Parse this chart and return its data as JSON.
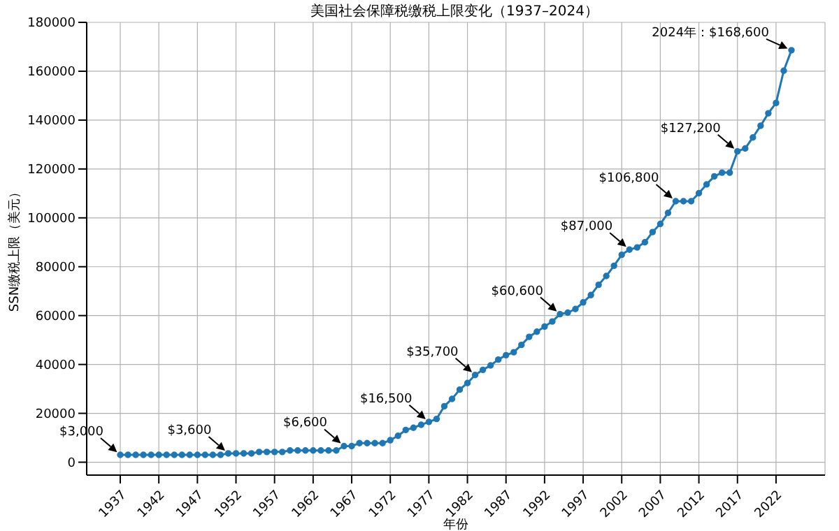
{
  "chart_data": {
    "type": "line",
    "title": "美国社会保障税缴税上限变化（1937–2024）",
    "xlabel": "年份",
    "ylabel": "SSN缴税上限（美元）",
    "x": [
      1937,
      1938,
      1939,
      1940,
      1941,
      1942,
      1943,
      1944,
      1945,
      1946,
      1947,
      1948,
      1949,
      1950,
      1951,
      1952,
      1953,
      1954,
      1955,
      1956,
      1957,
      1958,
      1959,
      1960,
      1961,
      1962,
      1963,
      1964,
      1965,
      1966,
      1967,
      1968,
      1969,
      1970,
      1971,
      1972,
      1973,
      1974,
      1975,
      1976,
      1977,
      1978,
      1979,
      1980,
      1981,
      1982,
      1983,
      1984,
      1985,
      1986,
      1987,
      1988,
      1989,
      1990,
      1991,
      1992,
      1993,
      1994,
      1995,
      1996,
      1997,
      1998,
      1999,
      2000,
      2001,
      2002,
      2003,
      2004,
      2005,
      2006,
      2007,
      2008,
      2009,
      2010,
      2011,
      2012,
      2013,
      2014,
      2015,
      2016,
      2017,
      2018,
      2019,
      2020,
      2021,
      2022,
      2023,
      2024
    ],
    "series": [
      {
        "color": "#1f77b4",
        "values": [
          3000,
          3000,
          3000,
          3000,
          3000,
          3000,
          3000,
          3000,
          3000,
          3000,
          3000,
          3000,
          3000,
          3000,
          3600,
          3600,
          3600,
          3600,
          4200,
          4200,
          4200,
          4200,
          4800,
          4800,
          4800,
          4800,
          4800,
          4800,
          4800,
          6600,
          6600,
          7800,
          7800,
          7800,
          7800,
          9000,
          10800,
          13200,
          14100,
          15300,
          16500,
          17700,
          22900,
          25900,
          29700,
          32400,
          35700,
          37800,
          39600,
          42000,
          43800,
          45000,
          48000,
          51300,
          53400,
          55500,
          57600,
          60600,
          61200,
          62700,
          65400,
          68400,
          72600,
          76200,
          80400,
          84900,
          87000,
          87900,
          90000,
          94200,
          97500,
          102000,
          106800,
          106800,
          106800,
          110100,
          113700,
          117000,
          118500,
          118500,
          127200,
          128400,
          132900,
          137700,
          142800,
          147000,
          160200,
          168600
        ]
      }
    ],
    "xlim": [
      1932.65,
      2028.35
    ],
    "xticks": [
      1937,
      1942,
      1947,
      1952,
      1957,
      1962,
      1967,
      1972,
      1977,
      1982,
      1987,
      1992,
      1997,
      2002,
      2007,
      2012,
      2017,
      2022
    ],
    "ylim": [
      -5280,
      180000
    ],
    "yticks": [
      0,
      20000,
      40000,
      60000,
      80000,
      100000,
      120000,
      140000,
      160000,
      180000
    ],
    "grid": true,
    "marker": "circle",
    "line_style": "solid",
    "annotations": [
      {
        "text": "$3,000",
        "x": 1937,
        "y": 3000
      },
      {
        "text": "$3,600",
        "x": 1951,
        "y": 3600
      },
      {
        "text": "$6,600",
        "x": 1966,
        "y": 6600
      },
      {
        "text": "$16,500",
        "x": 1977,
        "y": 16500
      },
      {
        "text": "$35,700",
        "x": 1983,
        "y": 35700
      },
      {
        "text": "$60,600",
        "x": 1994,
        "y": 60600
      },
      {
        "text": "$87,000",
        "x": 2003,
        "y": 87000
      },
      {
        "text": "$106,800",
        "x": 2009,
        "y": 106800
      },
      {
        "text": "$127,200",
        "x": 2017,
        "y": 127200
      },
      {
        "text": "2024年：$168,600",
        "x": 2024,
        "y": 168600
      }
    ]
  }
}
